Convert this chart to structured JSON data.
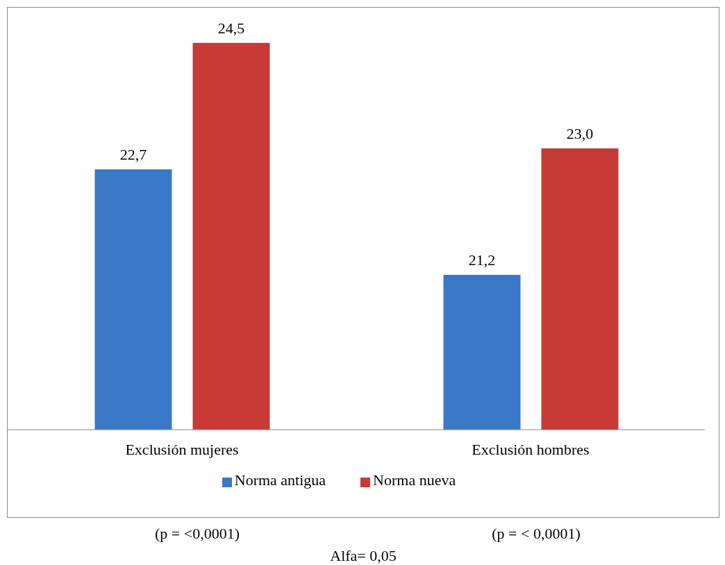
{
  "chart_data": {
    "type": "bar",
    "categories": [
      "Exclusión mujeres",
      "Exclusión hombres"
    ],
    "series": [
      {
        "name": "Norma antigua",
        "color": "#3a78c8",
        "values": [
          22.7,
          21.2
        ],
        "value_labels": [
          "22,7",
          "21,2"
        ]
      },
      {
        "name": "Norma nueva",
        "color": "#c83a36",
        "values": [
          24.5,
          23.0
        ],
        "value_labels": [
          "24,5",
          "23,0"
        ]
      }
    ],
    "ylim": [
      19,
      25
    ],
    "legend": "bottom",
    "grid": false,
    "annotations": [
      "(p = <0,0001)",
      "(p = < 0,0001)",
      "Alfa= 0,05"
    ]
  }
}
